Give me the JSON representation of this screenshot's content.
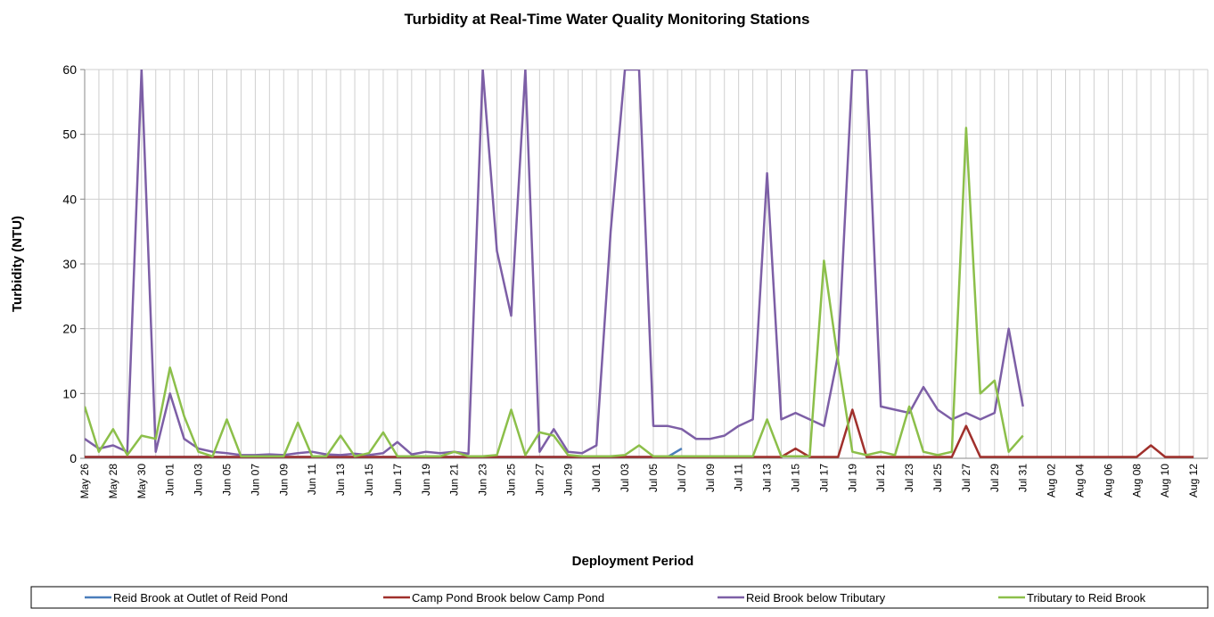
{
  "chart_data": {
    "type": "line",
    "title": "Turbidity at Real-Time Water Quality Monitoring Stations",
    "y_label": "Turbidity (NTU)",
    "x_label": "Deployment Period",
    "ylim": [
      0,
      60
    ],
    "yticks": [
      0,
      10,
      20,
      30,
      40,
      50,
      60
    ],
    "grid": true,
    "legend": "bottom",
    "categories": [
      "May 26",
      null,
      "May 28",
      null,
      "May 30",
      null,
      "Jun 01",
      null,
      "Jun 03",
      null,
      "Jun 05",
      null,
      "Jun 07",
      null,
      "Jun 09",
      null,
      "Jun 11",
      null,
      "Jun 13",
      null,
      "Jun 15",
      null,
      "Jun 17",
      null,
      "Jun 19",
      null,
      "Jun 21",
      null,
      "Jun 23",
      null,
      "Jun 25",
      null,
      "Jun 27",
      null,
      "Jun 29",
      null,
      "Jul 01",
      null,
      "Jul 03",
      null,
      "Jul 05",
      null,
      "Jul 07",
      null,
      "Jul 09",
      null,
      "Jul 11",
      null,
      "Jul 13",
      null,
      "Jul 15",
      null,
      "Jul 17",
      null,
      "Jul 19",
      null,
      "Jul 21",
      null,
      "Jul 23",
      null,
      "Jul 25",
      null,
      "Jul 27",
      null,
      "Jul 29",
      null,
      "Jul 31",
      null,
      "Aug 02",
      null,
      "Aug 04",
      null,
      "Aug 06",
      null,
      "Aug 08",
      null,
      "Aug 10",
      null,
      "Aug 12"
    ],
    "series": [
      {
        "name": "Reid Brook at Outlet of Reid Pond",
        "color": "#4a7ebb",
        "values": [
          0.2,
          0.2,
          0.2,
          0.2,
          0.2,
          0.2,
          0.2,
          0.2,
          0.2,
          0.2,
          0.2,
          0.2,
          0.2,
          0.2,
          0.2,
          0.2,
          0.2,
          0.2,
          0.2,
          0.2,
          0.2,
          0.2,
          0.2,
          0.2,
          0.2,
          0.2,
          0.2,
          0.2,
          0.2,
          0.2,
          0.2,
          0.2,
          0.2,
          0.2,
          0.2,
          0.2,
          0.2,
          0.2,
          0.2,
          0.2,
          0.2,
          0.2,
          1.5,
          null,
          null,
          null,
          null,
          null,
          null,
          null,
          null,
          null,
          null,
          null,
          null,
          null,
          null,
          null,
          null,
          null,
          null,
          null,
          null,
          null,
          null,
          null,
          null,
          null,
          null,
          null,
          null,
          null,
          null,
          null,
          null,
          null,
          null,
          null,
          null
        ]
      },
      {
        "name": "Camp Pond Brook below Camp Pond",
        "color": "#a0302c",
        "values": [
          0.2,
          0.2,
          0.2,
          0.2,
          0.2,
          0.2,
          0.2,
          0.2,
          0.2,
          0.2,
          0.2,
          0.2,
          0.2,
          0.2,
          0.2,
          0.2,
          0.2,
          0.2,
          0.2,
          0.2,
          0.2,
          0.2,
          0.2,
          0.2,
          0.2,
          0.2,
          0.2,
          0.2,
          0.2,
          0.2,
          0.2,
          0.2,
          0.2,
          0.2,
          0.2,
          0.2,
          0.2,
          0.2,
          0.2,
          0.2,
          0.2,
          0.2,
          0.2,
          0.2,
          0.2,
          0.2,
          0.2,
          0.2,
          0.2,
          0.2,
          1.5,
          0.2,
          0.2,
          0.2,
          7.5,
          0.2,
          0.2,
          0.2,
          0.2,
          0.2,
          0.2,
          0.2,
          5,
          0.2,
          0.2,
          0.2,
          0.2,
          0.2,
          0.2,
          0.2,
          0.2,
          0.2,
          0.2,
          0.2,
          0.2,
          2,
          0.2,
          0.2,
          0.2
        ]
      },
      {
        "name": "Reid Brook below Tributary",
        "color": "#7d5fa6",
        "values": [
          3,
          1.5,
          2,
          1,
          60,
          1,
          10,
          3,
          1.5,
          1,
          0.8,
          0.5,
          0.5,
          0.6,
          0.5,
          0.8,
          1,
          0.6,
          0.5,
          0.7,
          0.5,
          0.8,
          2.5,
          0.6,
          1,
          0.8,
          1,
          0.7,
          60,
          32,
          22,
          60,
          1,
          4.5,
          1,
          0.8,
          2,
          35,
          60,
          60,
          5,
          5,
          4.5,
          3,
          3,
          3.5,
          5,
          6,
          44,
          6,
          7,
          6,
          5,
          16,
          60,
          60,
          8,
          7.5,
          7,
          11,
          7.5,
          6,
          7,
          6,
          7,
          20,
          8,
          null,
          null,
          null,
          null,
          null,
          null,
          null,
          null,
          null,
          null,
          null,
          null
        ]
      },
      {
        "name": "Tributary to Reid Brook",
        "color": "#8cbf4a",
        "values": [
          8,
          1,
          4.5,
          0.5,
          3.5,
          3,
          14,
          6.5,
          1,
          0.3,
          6,
          0.3,
          0.3,
          0.3,
          0.3,
          5.5,
          0.3,
          0.3,
          3.5,
          0.3,
          0.8,
          4,
          0.3,
          0.3,
          0.3,
          0.3,
          1,
          0.3,
          0.3,
          0.5,
          7.5,
          0.5,
          4,
          3.5,
          0.5,
          0.3,
          0.3,
          0.3,
          0.5,
          2,
          0.3,
          0.3,
          0.3,
          0.3,
          0.3,
          0.3,
          0.3,
          0.3,
          6,
          0.3,
          0.3,
          0.3,
          30.5,
          15,
          1,
          0.5,
          1,
          0.5,
          8,
          1,
          0.5,
          1,
          51,
          10,
          12,
          1,
          3.5,
          null,
          null,
          null,
          null,
          null,
          null,
          null,
          null,
          null,
          null,
          null,
          null
        ]
      }
    ]
  }
}
